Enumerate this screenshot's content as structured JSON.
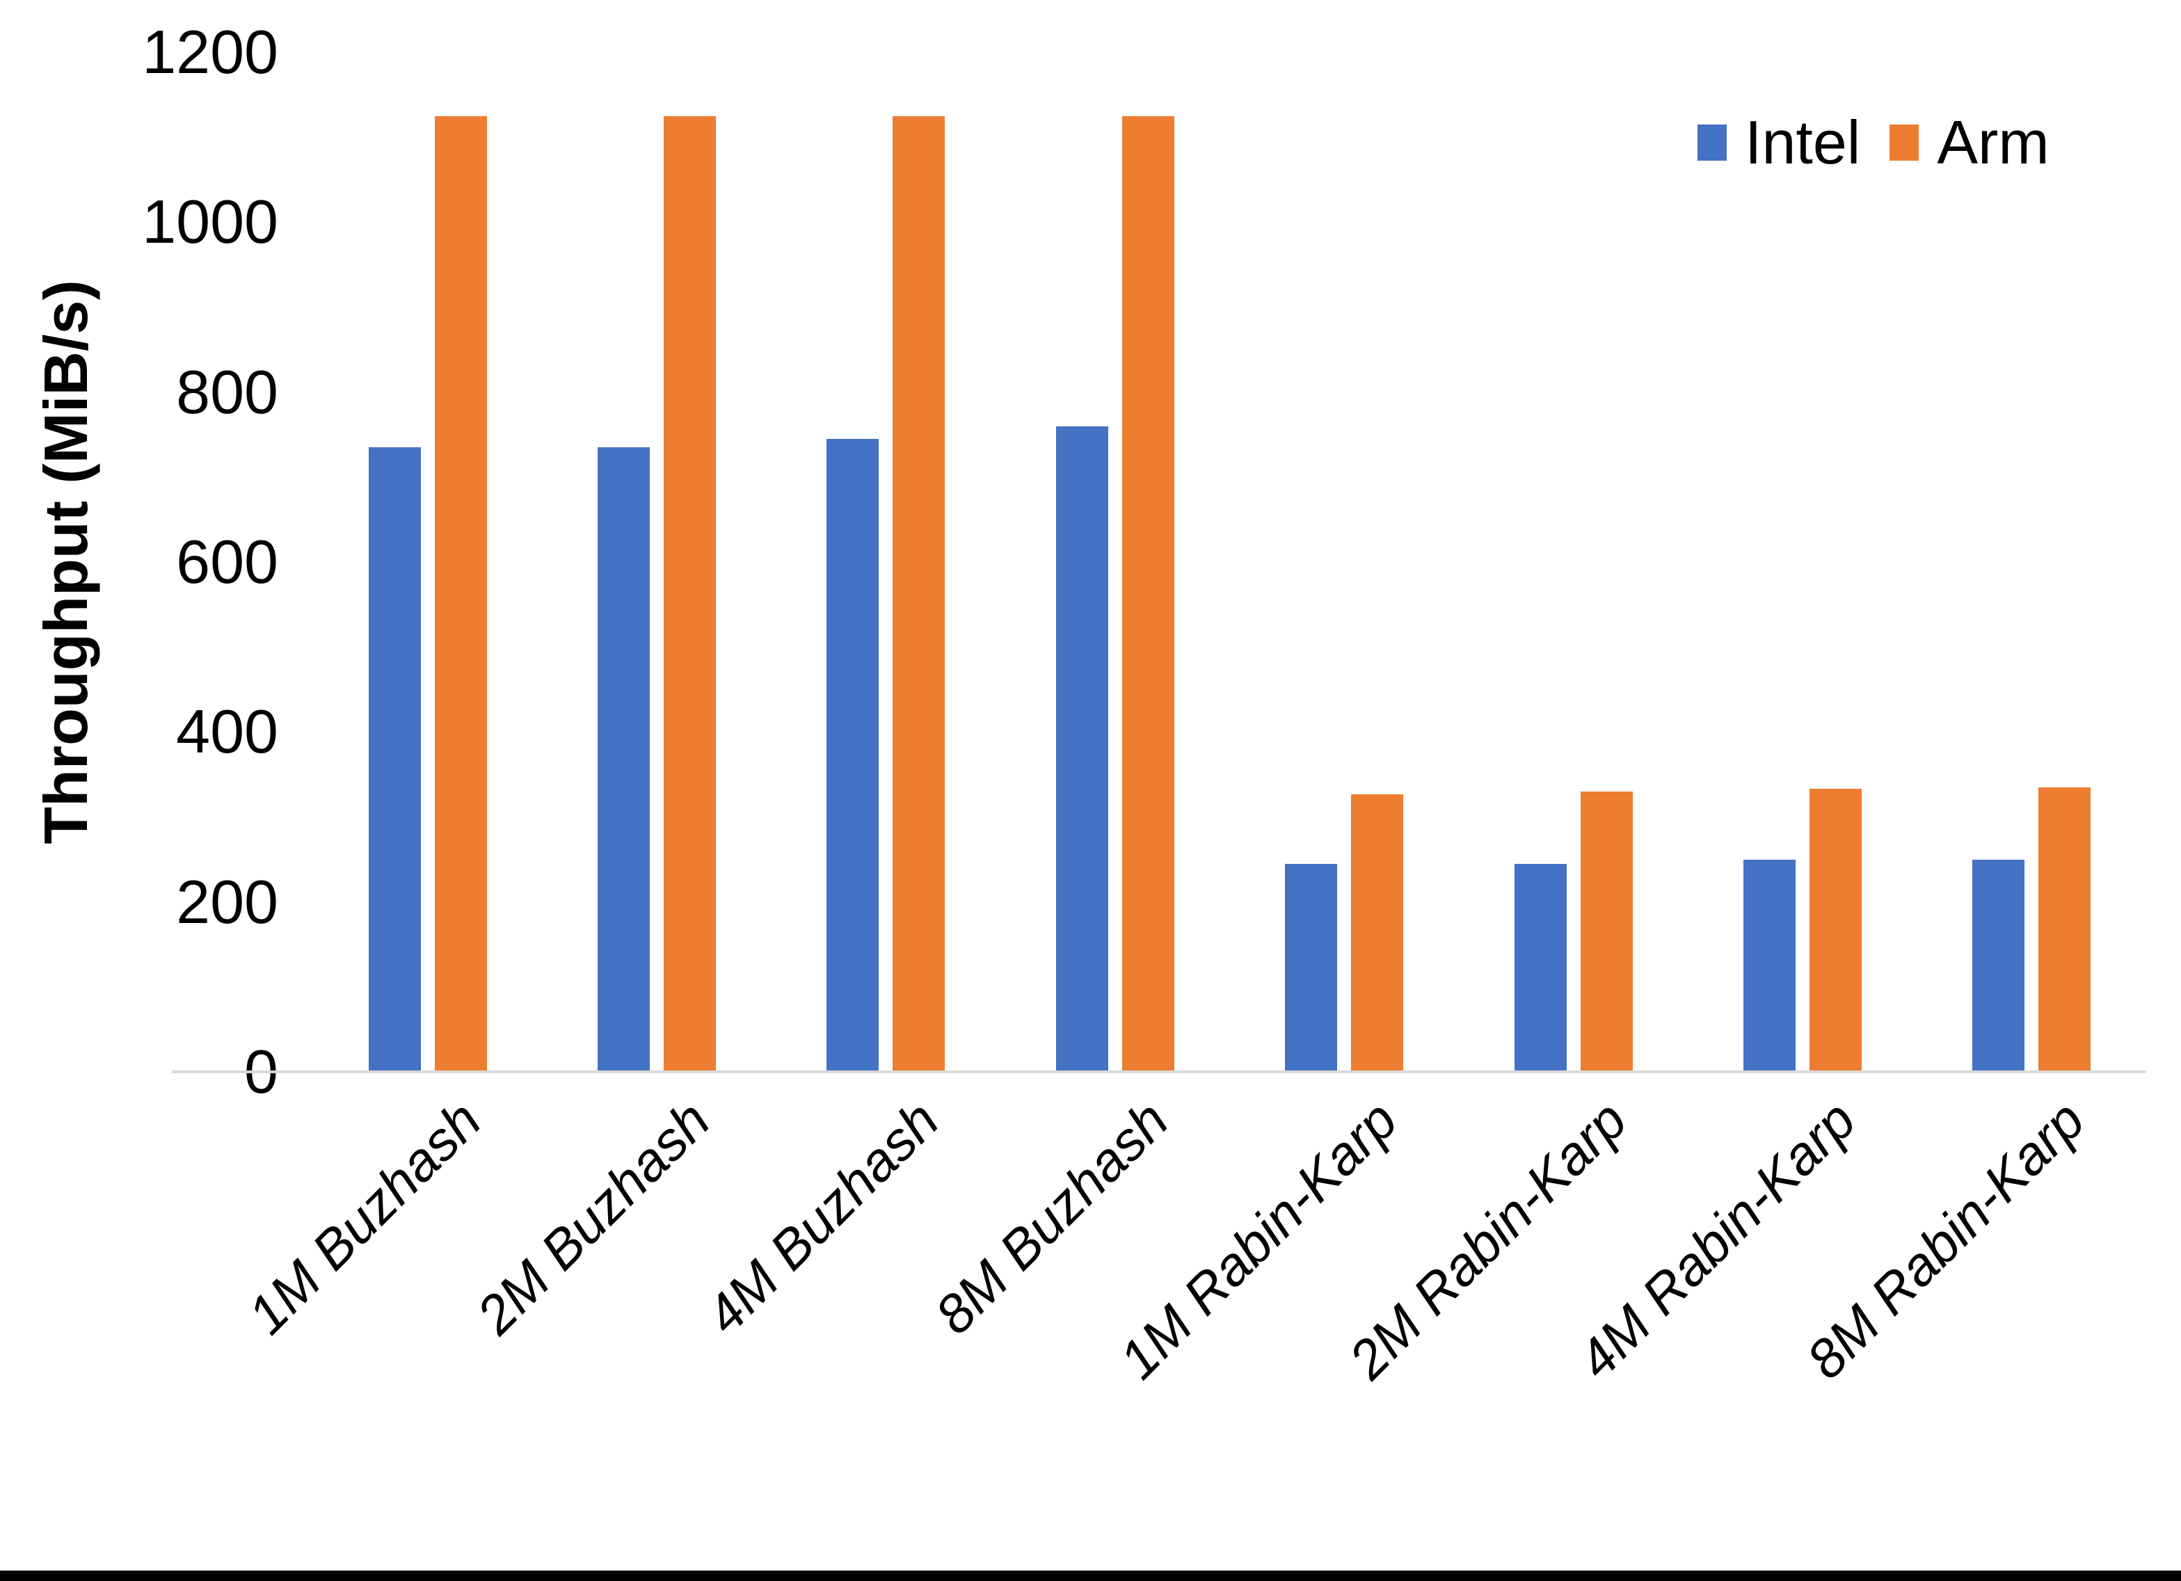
{
  "chart_data": {
    "type": "bar",
    "title": "",
    "xlabel": "",
    "ylabel": "Throughput (MiB/s)",
    "categories": [
      "1M Buzhash",
      "2M Buzhash",
      "4M Buzhash",
      "8M Buzhash",
      "1M Rabin-Karp",
      "2M Rabin-Karp",
      "4M Rabin-Karp",
      "8M Rabin-Karp"
    ],
    "series": [
      {
        "name": "Intel",
        "color": "#4472C4",
        "values": [
          735,
          735,
          745,
          760,
          245,
          245,
          250,
          250
        ]
      },
      {
        "name": "Arm",
        "color": "#ED7D31",
        "values": [
          1125,
          1125,
          1125,
          1125,
          327,
          330,
          333,
          335
        ]
      }
    ],
    "ylim": [
      0,
      1200
    ],
    "yticks": [
      0,
      200,
      400,
      600,
      800,
      1000,
      1200
    ],
    "grid": false,
    "legend_position": "top-right",
    "axis_line_color": "#D9D9D9",
    "text_color": "#000000",
    "background_color": "#FFFFFF",
    "bottom_border_color": "#000000"
  }
}
